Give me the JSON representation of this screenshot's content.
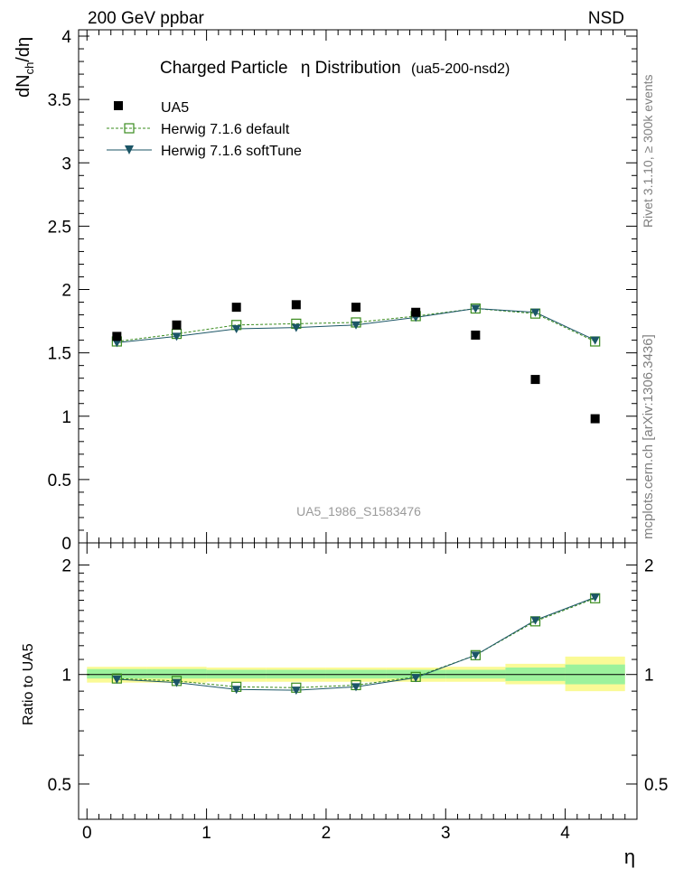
{
  "header": {
    "left": "200 GeV ppbar",
    "right": "NSD"
  },
  "title": {
    "main": "Charged Particle",
    "eta": "η Distribution",
    "tag": "(ua5-200-nsd2)"
  },
  "side_labels": {
    "rivet": "Rivet 3.1.10, ≥ 300k events",
    "mcplots": "mcplots.cern.ch [arXiv:1306.3436]"
  },
  "watermark": "UA5_1986_S1583476",
  "top_axis": {
    "ylabel_main": "dN",
    "ylabel_sub": "ch",
    "ylabel_tail": "/dη",
    "ylim": [
      0,
      4.05
    ],
    "ticks": [
      {
        "v": 0,
        "label": "0"
      },
      {
        "v": 0.5,
        "label": "0.5"
      },
      {
        "v": 1,
        "label": "1"
      },
      {
        "v": 1.5,
        "label": "1.5"
      },
      {
        "v": 2,
        "label": "2"
      },
      {
        "v": 2.5,
        "label": "2.5"
      },
      {
        "v": 3,
        "label": "3"
      },
      {
        "v": 3.5,
        "label": "3.5"
      },
      {
        "v": 4,
        "label": "4"
      }
    ]
  },
  "ratio_axis": {
    "ylabel": "Ratio to UA5",
    "ylim": [
      0.4,
      2.3
    ],
    "ticks": [
      {
        "v": 0.5,
        "label": "0.5"
      },
      {
        "v": 1,
        "label": "1"
      },
      {
        "v": 2,
        "label": "2"
      }
    ]
  },
  "x_axis": {
    "label": "η",
    "xlim": [
      -0.07,
      4.6
    ],
    "ticks": [
      {
        "v": 0,
        "label": "0"
      },
      {
        "v": 1,
        "label": "1"
      },
      {
        "v": 2,
        "label": "2"
      },
      {
        "v": 3,
        "label": "3"
      },
      {
        "v": 4,
        "label": "4"
      }
    ]
  },
  "legend": [
    {
      "name": "UA5",
      "style": "data"
    },
    {
      "name": "Herwig 7.1.6 default",
      "style": "default"
    },
    {
      "name": "Herwig 7.1.6 softTune",
      "style": "soft"
    }
  ],
  "colors": {
    "data": "#000000",
    "default": "#3a8c1e",
    "soft": "#1b5566",
    "band_inner": "#9cf29c",
    "band_outer": "#fafa96"
  },
  "chart_data": {
    "type": "scatter",
    "x": [
      0.25,
      0.75,
      1.25,
      1.75,
      2.25,
      2.75,
      3.25,
      3.75,
      4.25
    ],
    "bins": [
      [
        0,
        0.5
      ],
      [
        0.5,
        1
      ],
      [
        1,
        1.5
      ],
      [
        1.5,
        2
      ],
      [
        2,
        2.5
      ],
      [
        2.5,
        3
      ],
      [
        3,
        3.5
      ],
      [
        3.5,
        4
      ],
      [
        4,
        4.5
      ]
    ],
    "series": [
      {
        "name": "UA5",
        "values": [
          1.63,
          1.72,
          1.86,
          1.88,
          1.86,
          1.82,
          1.64,
          1.29,
          0.98
        ]
      },
      {
        "name": "Herwig 7.1.6 default",
        "values": [
          1.59,
          1.65,
          1.72,
          1.73,
          1.74,
          1.79,
          1.85,
          1.81,
          1.59
        ]
      },
      {
        "name": "Herwig 7.1.6 softTune",
        "values": [
          1.58,
          1.63,
          1.69,
          1.7,
          1.72,
          1.78,
          1.85,
          1.82,
          1.6
        ]
      }
    ],
    "ratio": {
      "series": [
        {
          "name": "Herwig 7.1.6 default",
          "values": [
            0.975,
            0.96,
            0.925,
            0.92,
            0.935,
            0.985,
            1.13,
            1.4,
            1.62
          ]
        },
        {
          "name": "Herwig 7.1.6 softTune",
          "values": [
            0.97,
            0.95,
            0.91,
            0.905,
            0.925,
            0.98,
            1.13,
            1.41,
            1.63
          ]
        }
      ],
      "band_inner": [
        {
          "bin": [
            0,
            0.5
          ],
          "lo": 0.975,
          "hi": 1.035
        },
        {
          "bin": [
            0.5,
            1
          ],
          "lo": 0.975,
          "hi": 1.035
        },
        {
          "bin": [
            1,
            1.5
          ],
          "lo": 0.975,
          "hi": 1.03
        },
        {
          "bin": [
            1.5,
            2
          ],
          "lo": 0.975,
          "hi": 1.03
        },
        {
          "bin": [
            2,
            2.5
          ],
          "lo": 0.975,
          "hi": 1.03
        },
        {
          "bin": [
            2.5,
            3
          ],
          "lo": 0.975,
          "hi": 1.03
        },
        {
          "bin": [
            3,
            3.5
          ],
          "lo": 0.975,
          "hi": 1.03
        },
        {
          "bin": [
            3.5,
            4
          ],
          "lo": 0.96,
          "hi": 1.045
        },
        {
          "bin": [
            4,
            4.5
          ],
          "lo": 0.94,
          "hi": 1.065
        }
      ],
      "band_outer": [
        {
          "bin": [
            0,
            0.5
          ],
          "lo": 0.95,
          "hi": 1.05
        },
        {
          "bin": [
            0.5,
            1
          ],
          "lo": 0.95,
          "hi": 1.05
        },
        {
          "bin": [
            1,
            1.5
          ],
          "lo": 0.955,
          "hi": 1.045
        },
        {
          "bin": [
            1.5,
            2
          ],
          "lo": 0.955,
          "hi": 1.045
        },
        {
          "bin": [
            2,
            2.5
          ],
          "lo": 0.955,
          "hi": 1.045
        },
        {
          "bin": [
            2.5,
            3
          ],
          "lo": 0.955,
          "hi": 1.045
        },
        {
          "bin": [
            3,
            3.5
          ],
          "lo": 0.955,
          "hi": 1.05
        },
        {
          "bin": [
            3.5,
            4
          ],
          "lo": 0.94,
          "hi": 1.07
        },
        {
          "bin": [
            4,
            4.5
          ],
          "lo": 0.9,
          "hi": 1.12
        }
      ]
    }
  }
}
